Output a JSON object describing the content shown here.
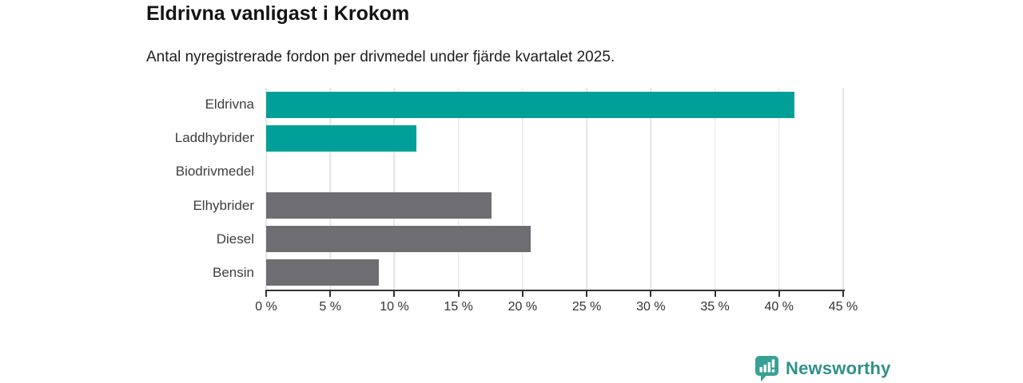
{
  "header": {
    "title": "Eldrivna vanligast i Krokom",
    "subtitle": "Antal nyregistrerade fordon per drivmedel under fjärde kvartalet 2025."
  },
  "chart_data": {
    "type": "bar",
    "orientation": "horizontal",
    "title": "Eldrivna vanligast i Krokom",
    "subtitle": "Antal nyregistrerade fordon per drivmedel under fjärde kvartalet 2025.",
    "categories": [
      "Eldrivna",
      "Laddhybrider",
      "Biodrivmedel",
      "Elhybrider",
      "Diesel",
      "Bensin"
    ],
    "values": [
      41.2,
      11.7,
      0,
      17.6,
      20.6,
      8.8
    ],
    "unit": "%",
    "bar_colors": [
      "#00a099",
      "#00a099",
      "#00a099",
      "#6e6d72",
      "#6e6d72",
      "#6e6d72"
    ],
    "xlabel": "",
    "ylabel": "",
    "xlim": [
      0,
      45
    ],
    "x_ticks": [
      "0 %",
      "5 %",
      "10 %",
      "15 %",
      "20 %",
      "25 %",
      "30 %",
      "35 %",
      "40 %",
      "45 %"
    ],
    "grid": true,
    "legend": false
  },
  "branding": {
    "logo_text": "Newsworthy"
  },
  "colors": {
    "teal": "#00a099",
    "gray": "#6e6d72",
    "gridline": "#e4e4e4",
    "axis": "#333333",
    "label_text": "#3d3d3d",
    "logo_teal": "#2f908c",
    "logo_icon_teal": "#38a195"
  }
}
